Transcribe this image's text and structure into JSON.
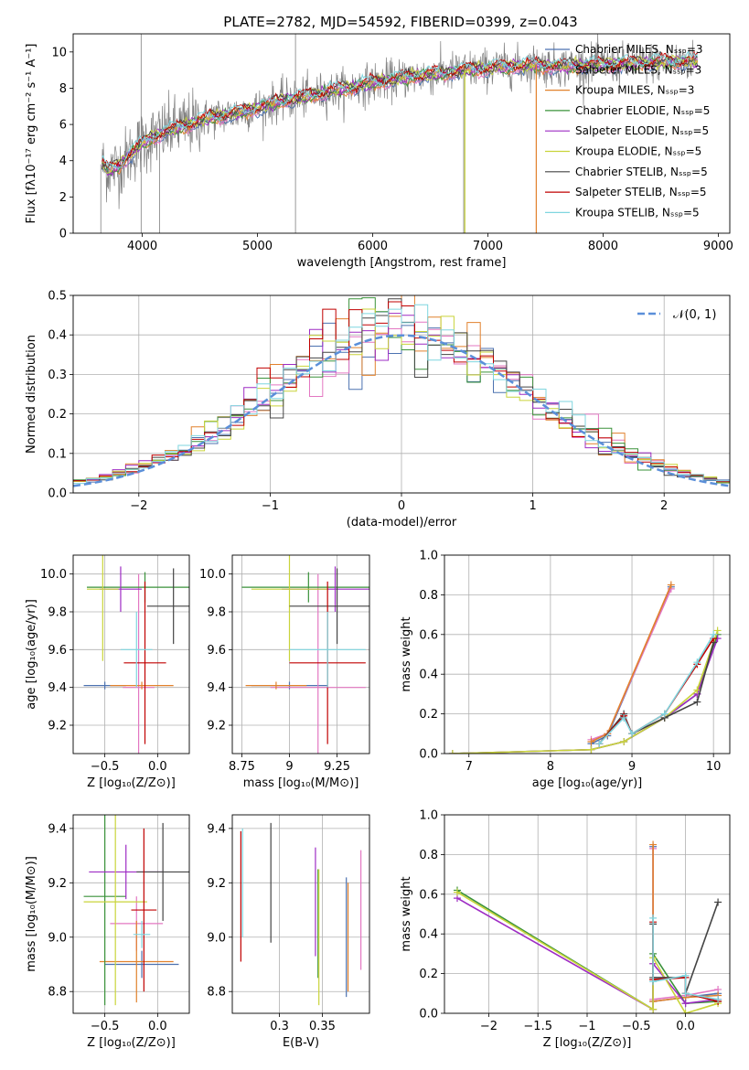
{
  "figure": {
    "title": "PLATE=2782, MJD=54592, FIBERID=0399, z=0.043"
  },
  "series_colors": {
    "Chabrier MILES": "#4c72b0",
    "Salpeter MILES": "#e377c2",
    "Kroupa MILES": "#e1812c",
    "Chabrier ELODIE": "#3a923a",
    "Salpeter ELODIE": "#9e2cc4",
    "Kroupa ELODIE": "#c9d43a",
    "Chabrier STELIB": "#444444",
    "Salpeter STELIB": "#c00000",
    "Kroupa STELIB": "#7fd6df",
    "data": "#808080"
  },
  "chart_data": [
    {
      "id": "spectrum",
      "type": "line",
      "title": "PLATE=2782, MJD=54592, FIBERID=0399, z=0.043",
      "xlabel": "wavelength [Angstrom, rest frame]",
      "ylabel": "Flux [fλ10⁻¹⁷ erg cm⁻² s⁻¹ A⁻¹]",
      "xlim": [
        3400,
        9100
      ],
      "ylim": [
        0,
        11
      ],
      "xticks": [
        4000,
        5000,
        6000,
        7000,
        8000,
        9000
      ],
      "yticks": [
        0,
        2,
        4,
        6,
        8,
        10
      ],
      "legend_position": "top-right",
      "legend": [
        "Chabrier MILES, Nₛₛₚ=3",
        "Salpeter MILES, Nₛₛₚ=3",
        "Kroupa MILES, Nₛₛₚ=3",
        "Chabrier ELODIE, Nₛₛₚ=5",
        "Salpeter ELODIE, Nₛₛₚ=5",
        "Kroupa ELODIE, Nₛₛₚ=5",
        "Chabrier STELIB, Nₛₛₚ=5",
        "Salpeter STELIB, Nₛₛₚ=5",
        "Kroupa STELIB, Nₛₛₚ=5"
      ],
      "model_x": [
        3650,
        3700,
        3800,
        3900,
        4000,
        4200,
        4400,
        4600,
        4800,
        5000,
        5200,
        5400,
        5600,
        5800,
        6000,
        6200,
        6400,
        6600,
        6800,
        7000,
        7200,
        7400,
        7600,
        7800,
        8000,
        8200,
        8400,
        8600,
        8800
      ],
      "model_y": [
        3.8,
        3.5,
        3.7,
        4.4,
        5.0,
        5.6,
        6.0,
        6.4,
        6.6,
        6.9,
        7.3,
        7.5,
        7.8,
        8.0,
        8.3,
        8.5,
        8.7,
        8.8,
        9.0,
        9.1,
        9.2,
        9.3,
        9.2,
        9.25,
        9.3,
        9.35,
        9.4,
        9.45,
        9.5
      ]
    },
    {
      "id": "residuals",
      "type": "histogram",
      "xlabel": "(data-model)/error",
      "ylabel": "Normed distribution",
      "xlim": [
        -2.5,
        2.5
      ],
      "ylim": [
        0,
        0.5
      ],
      "xticks": [
        -2,
        -1,
        0,
        1,
        2
      ],
      "yticks": [
        0.0,
        0.1,
        0.2,
        0.3,
        0.4,
        0.5
      ],
      "grid": true,
      "legend_position": "top-right",
      "legend": [
        "𝒩(0, 1)"
      ],
      "bin_width": 0.1,
      "bins_start": -2.5,
      "reference_curve": "normal(0,1)"
    },
    {
      "id": "age-vs-Z",
      "type": "errorbar",
      "xlabel": "Z [log₁₀(Z/Z⊙)]",
      "ylabel": "age  [log₁₀(age/yr)]",
      "xlim": [
        -0.8,
        0.3
      ],
      "ylim": [
        9.05,
        10.1
      ],
      "xticks": [
        -0.5,
        0.0
      ],
      "yticks": [
        9.2,
        9.4,
        9.6,
        9.8,
        10.0
      ],
      "points": [
        {
          "series": "Chabrier MILES",
          "x": -0.5,
          "y": 9.41,
          "xerr": 0.2,
          "yerr": 0.02
        },
        {
          "series": "Salpeter MILES",
          "x": -0.18,
          "y": 9.4,
          "xerr": 0.15,
          "yerr": 0.6
        },
        {
          "series": "Kroupa MILES",
          "x": -0.15,
          "y": 9.41,
          "xerr": 0.3,
          "yerr": 0.02
        },
        {
          "series": "Chabrier ELODIE",
          "x": -0.12,
          "y": 9.93,
          "xerr": 0.55,
          "yerr": 0.08
        },
        {
          "series": "Salpeter ELODIE",
          "x": -0.35,
          "y": 9.92,
          "xerr": 0.2,
          "yerr": 0.12
        },
        {
          "series": "Kroupa ELODIE",
          "x": -0.52,
          "y": 9.92,
          "xerr": 0.15,
          "yerr": 0.38
        },
        {
          "series": "Chabrier STELIB",
          "x": 0.15,
          "y": 9.83,
          "xerr": 0.25,
          "yerr": 0.2
        },
        {
          "series": "Salpeter STELIB",
          "x": -0.12,
          "y": 9.53,
          "xerr": 0.2,
          "yerr": 0.43
        },
        {
          "series": "Kroupa STELIB",
          "x": -0.2,
          "y": 9.6,
          "xerr": 0.15,
          "yerr": 0.2
        }
      ]
    },
    {
      "id": "age-vs-mass",
      "type": "errorbar",
      "xlabel": "mass [log₁₀(M/M⊙)]",
      "ylabel": "",
      "xlim": [
        8.7,
        9.42
      ],
      "ylim": [
        9.05,
        10.1
      ],
      "xticks": [
        8.75,
        9.0,
        9.25
      ],
      "yticks": [
        9.2,
        9.4,
        9.6,
        9.8,
        10.0
      ],
      "points": [
        {
          "series": "Chabrier MILES",
          "x": 9.0,
          "y": 9.41,
          "xerr": 0.2,
          "yerr": 0.02
        },
        {
          "series": "Salpeter MILES",
          "x": 9.15,
          "y": 9.4,
          "xerr": 0.25,
          "yerr": 0.6
        },
        {
          "series": "Kroupa MILES",
          "x": 8.93,
          "y": 9.41,
          "xerr": 0.16,
          "yerr": 0.02
        },
        {
          "series": "Chabrier ELODIE",
          "x": 9.1,
          "y": 9.93,
          "xerr": 0.35,
          "yerr": 0.08
        },
        {
          "series": "Salpeter ELODIE",
          "x": 9.24,
          "y": 9.92,
          "xerr": 0.28,
          "yerr": 0.12
        },
        {
          "series": "Kroupa ELODIE",
          "x": 9.0,
          "y": 9.92,
          "xerr": 0.2,
          "yerr": 0.38
        },
        {
          "series": "Chabrier STELIB",
          "x": 9.25,
          "y": 9.83,
          "xerr": 0.25,
          "yerr": 0.2
        },
        {
          "series": "Salpeter STELIB",
          "x": 9.2,
          "y": 9.53,
          "xerr": 0.2,
          "yerr": 0.43
        },
        {
          "series": "Kroupa STELIB",
          "x": 9.2,
          "y": 9.6,
          "xerr": 0.2,
          "yerr": 0.2
        }
      ]
    },
    {
      "id": "massweight-vs-age",
      "type": "line",
      "xlabel": "age  [log₁₀(age/yr)]",
      "ylabel": "mass weight",
      "xlim": [
        6.7,
        10.2
      ],
      "ylim": [
        0,
        1.0
      ],
      "xticks": [
        7,
        8,
        9,
        10
      ],
      "yticks": [
        0.0,
        0.2,
        0.4,
        0.6,
        0.8,
        1.0
      ],
      "grid": true,
      "series": [
        {
          "series": "Chabrier MILES",
          "x": [
            8.5,
            8.7,
            9.48
          ],
          "y": [
            0.05,
            0.09,
            0.84
          ]
        },
        {
          "series": "Salpeter MILES",
          "x": [
            8.5,
            8.7,
            9.48
          ],
          "y": [
            0.07,
            0.1,
            0.83
          ]
        },
        {
          "series": "Kroupa MILES",
          "x": [
            8.5,
            8.7,
            9.48
          ],
          "y": [
            0.06,
            0.1,
            0.85
          ]
        },
        {
          "series": "Chabrier ELODIE",
          "x": [
            6.8,
            8.5,
            8.9,
            9.4,
            9.8,
            10.05
          ],
          "y": [
            0.0,
            0.02,
            0.06,
            0.18,
            0.3,
            0.6
          ]
        },
        {
          "series": "Salpeter ELODIE",
          "x": [
            6.8,
            8.5,
            8.9,
            9.4,
            9.8,
            10.05
          ],
          "y": [
            0.0,
            0.02,
            0.06,
            0.18,
            0.3,
            0.58
          ]
        },
        {
          "series": "Kroupa ELODIE",
          "x": [
            6.8,
            8.5,
            8.9,
            9.4,
            9.8,
            10.05
          ],
          "y": [
            0.0,
            0.02,
            0.06,
            0.18,
            0.32,
            0.62
          ]
        },
        {
          "series": "Chabrier STELIB",
          "x": [
            8.6,
            8.9,
            9.0,
            9.4,
            9.8,
            10.0
          ],
          "y": [
            0.05,
            0.2,
            0.1,
            0.18,
            0.26,
            0.56
          ]
        },
        {
          "series": "Salpeter STELIB",
          "x": [
            8.6,
            8.9,
            9.0,
            9.4,
            9.8,
            10.0
          ],
          "y": [
            0.05,
            0.19,
            0.1,
            0.2,
            0.45,
            0.58
          ]
        },
        {
          "series": "Kroupa STELIB",
          "x": [
            8.6,
            8.9,
            9.0,
            9.4,
            9.8,
            10.0
          ],
          "y": [
            0.05,
            0.18,
            0.1,
            0.2,
            0.46,
            0.6
          ]
        }
      ]
    },
    {
      "id": "mass-vs-Z",
      "type": "errorbar",
      "xlabel": "Z [log₁₀(Z/Z⊙)]",
      "ylabel": "mass [log₁₀(M/M⊙)]",
      "xlim": [
        -0.8,
        0.3
      ],
      "ylim": [
        8.72,
        9.45
      ],
      "xticks": [
        -0.5,
        0.0
      ],
      "yticks": [
        8.8,
        9.0,
        9.2,
        9.4
      ],
      "points": [
        {
          "series": "Chabrier MILES",
          "x": -0.15,
          "y": 8.9,
          "xerr": 0.35,
          "yerr": 0.05
        },
        {
          "series": "Salpeter MILES",
          "x": -0.2,
          "y": 9.05,
          "xerr": 0.25,
          "yerr": 0.1
        },
        {
          "series": "Kroupa MILES",
          "x": -0.2,
          "y": 8.91,
          "xerr": 0.35,
          "yerr": 0.15
        },
        {
          "series": "Chabrier ELODIE",
          "x": -0.5,
          "y": 9.15,
          "xerr": 0.2,
          "yerr": 0.4
        },
        {
          "series": "Salpeter ELODIE",
          "x": -0.3,
          "y": 9.24,
          "xerr": 0.35,
          "yerr": 0.1
        },
        {
          "series": "Kroupa ELODIE",
          "x": -0.4,
          "y": 9.13,
          "xerr": 0.3,
          "yerr": 0.38
        },
        {
          "series": "Chabrier STELIB",
          "x": 0.05,
          "y": 9.24,
          "xerr": 0.25,
          "yerr": 0.18
        },
        {
          "series": "Salpeter STELIB",
          "x": -0.13,
          "y": 9.1,
          "xerr": 0.12,
          "yerr": 0.3
        },
        {
          "series": "Kroupa STELIB",
          "x": -0.15,
          "y": 9.01,
          "xerr": 0.08,
          "yerr": 0.05
        }
      ]
    },
    {
      "id": "mass-vs-ebv",
      "type": "errorbar",
      "xlabel": "E(B-V)",
      "ylabel": "",
      "xlim": [
        0.245,
        0.405
      ],
      "ylim": [
        8.72,
        9.45
      ],
      "xticks": [
        0.3,
        0.35
      ],
      "yticks": [
        8.8,
        9.0,
        9.2,
        9.4
      ],
      "points": [
        {
          "series": "Chabrier MILES",
          "x": 0.378,
          "y": 9.0,
          "xerr": 0.0,
          "yerr": 0.22
        },
        {
          "series": "Salpeter MILES",
          "x": 0.395,
          "y": 9.1,
          "xerr": 0.0,
          "yerr": 0.22
        },
        {
          "series": "Kroupa MILES",
          "x": 0.38,
          "y": 9.0,
          "xerr": 0.0,
          "yerr": 0.2
        },
        {
          "series": "Chabrier ELODIE",
          "x": 0.345,
          "y": 9.05,
          "xerr": 0.0,
          "yerr": 0.2
        },
        {
          "series": "Salpeter ELODIE",
          "x": 0.342,
          "y": 9.13,
          "xerr": 0.0,
          "yerr": 0.2
        },
        {
          "series": "Kroupa ELODIE",
          "x": 0.346,
          "y": 9.0,
          "xerr": 0.0,
          "yerr": 0.25
        },
        {
          "series": "Chabrier STELIB",
          "x": 0.29,
          "y": 9.2,
          "xerr": 0.0,
          "yerr": 0.22
        },
        {
          "series": "Salpeter STELIB",
          "x": 0.255,
          "y": 9.15,
          "xerr": 0.0,
          "yerr": 0.24
        },
        {
          "series": "Kroupa STELIB",
          "x": 0.257,
          "y": 9.2,
          "xerr": 0.0,
          "yerr": 0.2
        }
      ]
    },
    {
      "id": "massweight-vs-Z",
      "type": "line",
      "xlabel": "Z [log₁₀(Z/Z⊙)]",
      "ylabel": "mass weight",
      "xlim": [
        -2.45,
        0.45
      ],
      "ylim": [
        0,
        1.0
      ],
      "xticks": [
        -2.0,
        -1.5,
        -1.0,
        -0.5,
        0.0
      ],
      "yticks": [
        0.0,
        0.2,
        0.4,
        0.6,
        0.8,
        1.0
      ],
      "grid": true,
      "series": [
        {
          "series": "Chabrier MILES",
          "x": [
            -0.33,
            -0.33,
            0.0,
            0.33
          ],
          "y": [
            0.84,
            0.06,
            0.08,
            0.1
          ]
        },
        {
          "series": "Salpeter MILES",
          "x": [
            -0.33,
            -0.33,
            0.0,
            0.33
          ],
          "y": [
            0.83,
            0.07,
            0.09,
            0.12
          ]
        },
        {
          "series": "Kroupa MILES",
          "x": [
            -0.33,
            -0.33,
            0.0,
            0.33
          ],
          "y": [
            0.85,
            0.06,
            0.08,
            0.09
          ]
        },
        {
          "series": "Chabrier ELODIE",
          "x": [
            -2.32,
            -0.33,
            -0.33,
            0.0,
            0.33
          ],
          "y": [
            0.62,
            0.02,
            0.3,
            0.05,
            0.06
          ]
        },
        {
          "series": "Salpeter ELODIE",
          "x": [
            -2.32,
            -0.33,
            -0.33,
            0.0,
            0.33
          ],
          "y": [
            0.58,
            0.02,
            0.25,
            0.05,
            0.07
          ]
        },
        {
          "series": "Kroupa ELODIE",
          "x": [
            -2.32,
            -0.33,
            -0.33,
            0.0,
            0.33
          ],
          "y": [
            0.61,
            0.02,
            0.28,
            0.0,
            0.05
          ]
        },
        {
          "series": "Chabrier STELIB",
          "x": [
            -0.33,
            -0.33,
            0.0,
            0.0,
            0.33
          ],
          "y": [
            0.45,
            0.18,
            0.18,
            0.1,
            0.56
          ]
        },
        {
          "series": "Salpeter STELIB",
          "x": [
            -0.33,
            -0.33,
            0.0,
            0.0,
            0.33
          ],
          "y": [
            0.46,
            0.17,
            0.18,
            0.1,
            0.06
          ]
        },
        {
          "series": "Kroupa STELIB",
          "x": [
            -0.33,
            -0.33,
            0.0,
            0.0,
            0.33
          ],
          "y": [
            0.48,
            0.16,
            0.19,
            0.1,
            0.07
          ]
        }
      ]
    }
  ]
}
